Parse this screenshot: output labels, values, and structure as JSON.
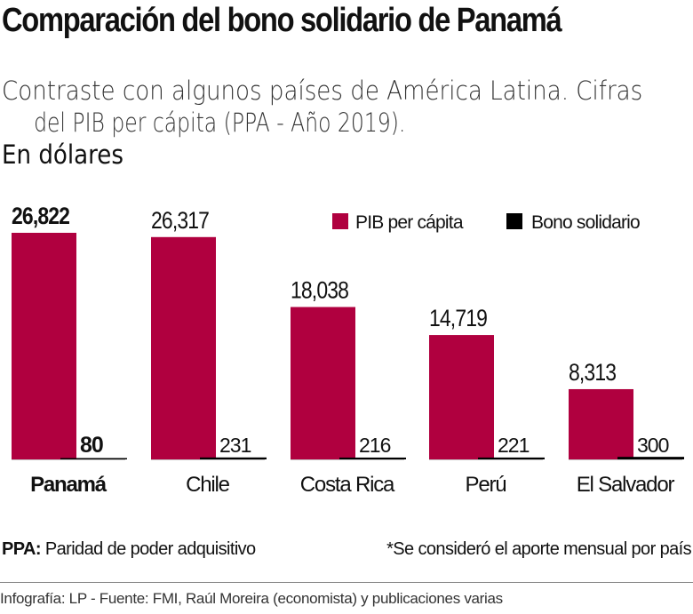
{
  "title": "Comparación del bono solidario de Panamá",
  "subtitle_line1": "Contraste con algunos países de América Latina. Cifras",
  "subtitle_line2": "del PIB per cápita (PPA - Año 2019).",
  "subtitle_bold": "En dólares",
  "note_left_bold": "PPA:",
  "note_left": "Paridad de poder adquisitivo",
  "note_right": "*Se consideró el aporte mensual por país",
  "footer": "Infografía: LP - Fuente: FMI, Raúl Moreira (economista) y publicaciones varias",
  "chart_data": {
    "type": "bar",
    "categories": [
      "Panamá",
      "Chile",
      "Costa Rica",
      "Perú",
      "El Salvador"
    ],
    "highlight": "Panamá",
    "series": [
      {
        "name": "PIB per cápita",
        "color": "#b0003f",
        "values": [
          26822,
          26317,
          18038,
          14719,
          8313
        ],
        "labels": [
          "26,822",
          "26,317",
          "18,038",
          "14,719",
          "8,313"
        ]
      },
      {
        "name": "Bono solidario",
        "color": "#000000",
        "values": [
          80,
          231,
          216,
          221,
          300
        ],
        "labels": [
          "80",
          "231",
          "216",
          "221",
          "300"
        ]
      }
    ],
    "legend": "top-right"
  }
}
